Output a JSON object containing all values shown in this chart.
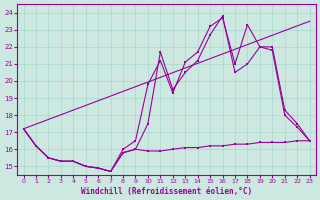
{
  "bg_color": "#cce8e0",
  "grid_color": "#a8d8cc",
  "line_color": "#990099",
  "xlabel": "Windchill (Refroidissement éolien,°C)",
  "xlim": [
    -0.5,
    23.5
  ],
  "ylim": [
    14.5,
    24.5
  ],
  "yticks": [
    15,
    16,
    17,
    18,
    19,
    20,
    21,
    22,
    23,
    24
  ],
  "xticks": [
    0,
    1,
    2,
    3,
    4,
    5,
    6,
    7,
    8,
    9,
    10,
    11,
    12,
    13,
    14,
    15,
    16,
    17,
    18,
    19,
    20,
    21,
    22,
    23
  ],
  "line1_x": [
    0,
    1,
    2,
    3,
    4,
    5,
    6,
    7,
    8,
    9,
    10,
    11,
    12,
    13,
    14,
    15,
    16,
    17,
    18,
    19,
    20,
    21,
    22,
    23
  ],
  "line1_y": [
    17.2,
    16.2,
    15.5,
    15.3,
    15.3,
    15.0,
    14.9,
    14.7,
    15.8,
    16.0,
    17.5,
    21.7,
    19.5,
    20.5,
    21.2,
    22.7,
    23.8,
    20.5,
    21.0,
    22.0,
    22.0,
    18.3,
    17.5,
    16.5
  ],
  "line2_x": [
    0,
    1,
    2,
    3,
    4,
    5,
    6,
    7,
    8,
    9,
    10,
    11,
    12,
    13,
    14,
    15,
    16,
    17,
    18,
    19,
    20,
    21,
    22,
    23
  ],
  "line2_y": [
    17.2,
    16.2,
    15.5,
    15.3,
    15.3,
    15.0,
    14.9,
    14.7,
    16.0,
    16.5,
    19.8,
    21.2,
    19.3,
    21.1,
    21.7,
    23.2,
    23.7,
    21.0,
    23.3,
    22.0,
    21.8,
    18.0,
    17.3,
    16.5
  ],
  "line3_x": [
    0,
    23
  ],
  "line3_y": [
    17.2,
    23.5
  ],
  "line4_x": [
    0,
    1,
    2,
    3,
    4,
    5,
    6,
    7,
    8,
    9,
    10,
    11,
    12,
    13,
    14,
    15,
    16,
    17,
    18,
    19,
    20,
    21,
    22,
    23
  ],
  "line4_y": [
    17.2,
    16.2,
    15.5,
    15.3,
    15.3,
    15.0,
    14.9,
    14.7,
    15.8,
    16.0,
    15.9,
    15.9,
    16.0,
    16.1,
    16.1,
    16.2,
    16.2,
    16.3,
    16.3,
    16.4,
    16.4,
    16.4,
    16.5,
    16.5
  ]
}
